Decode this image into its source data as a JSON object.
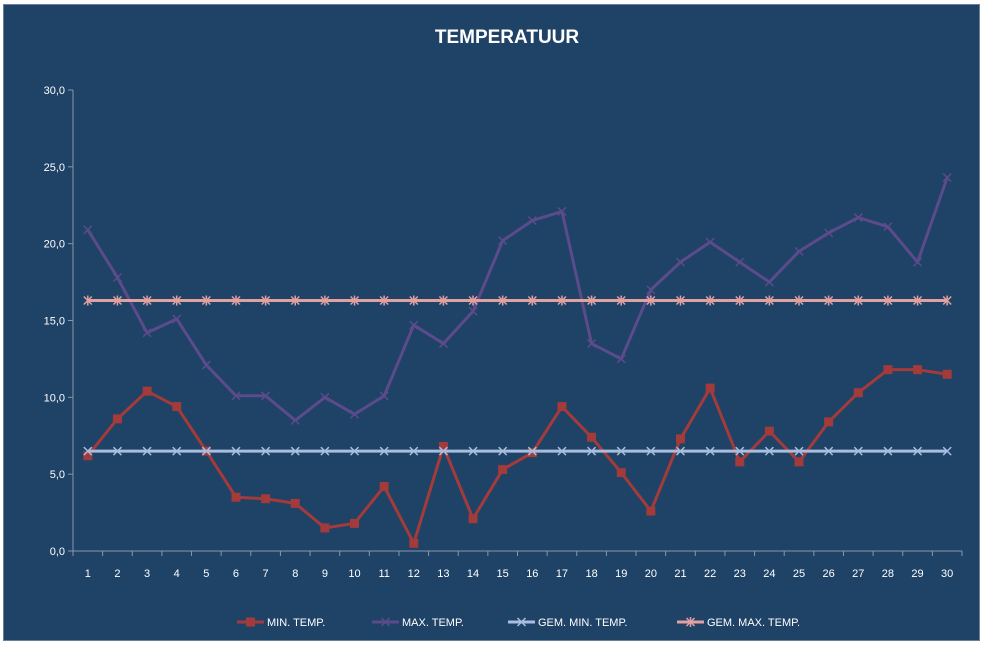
{
  "chart_data": {
    "type": "line",
    "title": "TEMPERATUUR",
    "xlabel": "",
    "ylabel": "",
    "ylim": [
      0,
      30
    ],
    "yticks": [
      "0,0",
      "5,0",
      "10,0",
      "15,0",
      "20,0",
      "25,0",
      "30,0"
    ],
    "categories": [
      "1",
      "2",
      "3",
      "4",
      "5",
      "6",
      "7",
      "8",
      "9",
      "10",
      "11",
      "12",
      "13",
      "14",
      "15",
      "16",
      "17",
      "18",
      "19",
      "20",
      "21",
      "22",
      "23",
      "24",
      "25",
      "26",
      "27",
      "28",
      "29",
      "30"
    ],
    "grid": false,
    "legend_position": "bottom",
    "series": [
      {
        "name": "MIN. TEMP.",
        "color": "#a33b3b",
        "marker": "square",
        "values": [
          6.2,
          8.6,
          10.4,
          9.4,
          6.5,
          3.5,
          3.4,
          3.1,
          1.5,
          1.8,
          4.2,
          0.5,
          6.8,
          2.1,
          5.3,
          6.4,
          9.4,
          7.4,
          5.1,
          2.6,
          7.3,
          10.6,
          5.8,
          7.8,
          5.8,
          8.4,
          10.3,
          11.8,
          11.8,
          11.5
        ]
      },
      {
        "name": "MAX. TEMP.",
        "color": "#5c4b8a",
        "marker": "x",
        "values": [
          20.9,
          17.8,
          14.2,
          15.1,
          12.1,
          10.1,
          10.1,
          8.5,
          10.0,
          8.9,
          10.1,
          14.7,
          13.5,
          15.6,
          20.2,
          21.5,
          22.1,
          13.5,
          12.5,
          17.0,
          18.8,
          20.1,
          18.8,
          17.5,
          19.5,
          20.7,
          21.7,
          21.1,
          18.8,
          24.3
        ]
      },
      {
        "name": "GEM. MIN. TEMP.",
        "color": "#a9bedf",
        "marker": "x",
        "values": [
          6.5,
          6.5,
          6.5,
          6.5,
          6.5,
          6.5,
          6.5,
          6.5,
          6.5,
          6.5,
          6.5,
          6.5,
          6.5,
          6.5,
          6.5,
          6.5,
          6.5,
          6.5,
          6.5,
          6.5,
          6.5,
          6.5,
          6.5,
          6.5,
          6.5,
          6.5,
          6.5,
          6.5,
          6.5,
          6.5
        ]
      },
      {
        "name": "GEM. MAX. TEMP.",
        "color": "#e2a1a1",
        "marker": "star",
        "values": [
          16.3,
          16.3,
          16.3,
          16.3,
          16.3,
          16.3,
          16.3,
          16.3,
          16.3,
          16.3,
          16.3,
          16.3,
          16.3,
          16.3,
          16.3,
          16.3,
          16.3,
          16.3,
          16.3,
          16.3,
          16.3,
          16.3,
          16.3,
          16.3,
          16.3,
          16.3,
          16.3,
          16.3,
          16.3,
          16.3
        ]
      }
    ]
  }
}
